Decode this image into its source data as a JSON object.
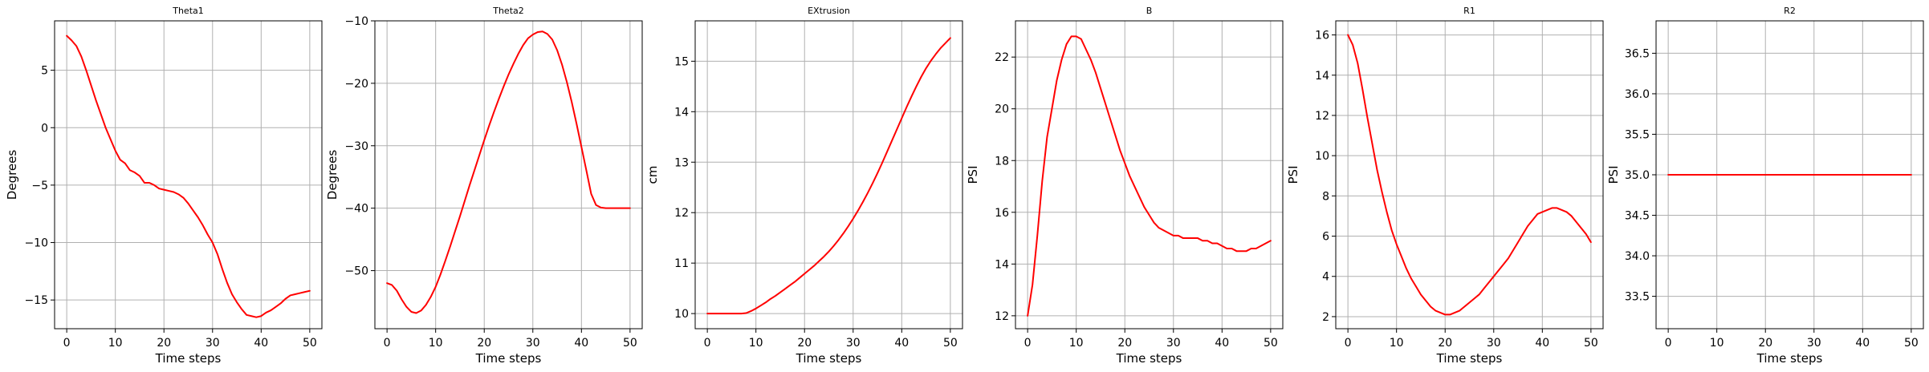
{
  "chart_data": [
    {
      "type": "line",
      "title": "Theta1",
      "xlabel": "Time steps",
      "ylabel": "Degrees",
      "xlim": [
        -2.5,
        52.5
      ],
      "ylim": [
        -17.5,
        9.3
      ],
      "xticks": [
        0,
        10,
        20,
        30,
        40,
        50
      ],
      "xtick_labels": [
        "0",
        "10",
        "20",
        "30",
        "40",
        "50"
      ],
      "yticks": [
        5,
        0,
        -5,
        -10,
        -15
      ],
      "ytick_labels": [
        "5",
        "0",
        "−5",
        "−10",
        "−15"
      ],
      "grid": true,
      "series": [
        {
          "name": "Theta1",
          "color": "#ff0000",
          "x": [
            0,
            1,
            2,
            3,
            4,
            5,
            6,
            7,
            8,
            9,
            10,
            11,
            12,
            13,
            14,
            15,
            16,
            17,
            18,
            19,
            20,
            21,
            22,
            23,
            24,
            25,
            26,
            27,
            28,
            29,
            30,
            31,
            32,
            33,
            34,
            35,
            36,
            37,
            38,
            39,
            40,
            41,
            42,
            43,
            44,
            45,
            46,
            47,
            48,
            49,
            50
          ],
          "y": [
            8.0,
            7.6,
            7.1,
            6.2,
            5.0,
            3.7,
            2.4,
            1.2,
            0.0,
            -1.0,
            -2.0,
            -2.8,
            -3.1,
            -3.7,
            -3.9,
            -4.2,
            -4.8,
            -4.8,
            -5.0,
            -5.3,
            -5.4,
            -5.5,
            -5.6,
            -5.8,
            -6.1,
            -6.6,
            -7.2,
            -7.8,
            -8.5,
            -9.3,
            -10.0,
            -11.0,
            -12.3,
            -13.5,
            -14.5,
            -15.2,
            -15.8,
            -16.3,
            -16.4,
            -16.5,
            -16.4,
            -16.1,
            -15.9,
            -15.6,
            -15.3,
            -14.9,
            -14.6,
            -14.5,
            -14.4,
            -14.3,
            -14.2
          ]
        }
      ]
    },
    {
      "type": "line",
      "title": "Theta2",
      "xlabel": "Time steps",
      "ylabel": "Degrees",
      "xlim": [
        -2.5,
        52.5
      ],
      "ylim": [
        -59.3,
        -10.0
      ],
      "xticks": [
        0,
        10,
        20,
        30,
        40,
        50
      ],
      "xtick_labels": [
        "0",
        "10",
        "20",
        "30",
        "40",
        "50"
      ],
      "yticks": [
        -10,
        -20,
        -30,
        -40,
        -50
      ],
      "ytick_labels": [
        "−10",
        "−20",
        "−30",
        "−40",
        "−50"
      ],
      "grid": true,
      "series": [
        {
          "name": "Theta2",
          "color": "#ff0000",
          "x": [
            0,
            1,
            2,
            3,
            4,
            5,
            6,
            7,
            8,
            9,
            10,
            11,
            12,
            13,
            14,
            15,
            16,
            17,
            18,
            19,
            20,
            21,
            22,
            23,
            24,
            25,
            26,
            27,
            28,
            29,
            30,
            31,
            32,
            33,
            34,
            35,
            36,
            37,
            38,
            39,
            40,
            41,
            42,
            43,
            44,
            45,
            46,
            47,
            48,
            49,
            50
          ],
          "y": [
            -52.0,
            -52.3,
            -53.2,
            -54.6,
            -55.8,
            -56.6,
            -56.8,
            -56.4,
            -55.5,
            -54.2,
            -52.6,
            -50.6,
            -48.4,
            -46.1,
            -43.7,
            -41.3,
            -38.8,
            -36.3,
            -33.9,
            -31.5,
            -29.1,
            -26.8,
            -24.6,
            -22.5,
            -20.5,
            -18.6,
            -16.9,
            -15.3,
            -13.9,
            -12.8,
            -12.2,
            -11.8,
            -11.7,
            -12.1,
            -13.0,
            -14.7,
            -17.0,
            -19.8,
            -23.0,
            -26.5,
            -30.2,
            -33.9,
            -37.7,
            -39.5,
            -39.9,
            -40.0,
            -40.0,
            -40.0,
            -40.0,
            -40.0,
            -40.0
          ]
        }
      ]
    },
    {
      "type": "line",
      "title": "EXtrusion",
      "xlabel": "Time steps",
      "ylabel": "cm",
      "xlim": [
        -2.5,
        52.5
      ],
      "ylim": [
        9.7,
        15.8
      ],
      "xticks": [
        0,
        10,
        20,
        30,
        40,
        50
      ],
      "xtick_labels": [
        "0",
        "10",
        "20",
        "30",
        "40",
        "50"
      ],
      "yticks": [
        15,
        14,
        13,
        12,
        11,
        10
      ],
      "ytick_labels": [
        "15",
        "14",
        "13",
        "12",
        "11",
        "10"
      ],
      "grid": true,
      "series": [
        {
          "name": "EXtrusion",
          "color": "#ff0000",
          "x": [
            0,
            1,
            2,
            3,
            4,
            5,
            6,
            7,
            8,
            9,
            10,
            11,
            12,
            13,
            14,
            15,
            16,
            17,
            18,
            19,
            20,
            21,
            22,
            23,
            24,
            25,
            26,
            27,
            28,
            29,
            30,
            31,
            32,
            33,
            34,
            35,
            36,
            37,
            38,
            39,
            40,
            41,
            42,
            43,
            44,
            45,
            46,
            47,
            48,
            49,
            50
          ],
          "y": [
            10.0,
            10.0,
            10.0,
            10.0,
            10.0,
            10.0,
            10.0,
            10.0,
            10.01,
            10.05,
            10.1,
            10.16,
            10.22,
            10.29,
            10.35,
            10.42,
            10.49,
            10.56,
            10.63,
            10.71,
            10.79,
            10.87,
            10.95,
            11.04,
            11.13,
            11.23,
            11.34,
            11.46,
            11.59,
            11.73,
            11.88,
            12.04,
            12.21,
            12.39,
            12.58,
            12.78,
            12.99,
            13.21,
            13.43,
            13.65,
            13.87,
            14.09,
            14.3,
            14.5,
            14.69,
            14.86,
            15.01,
            15.14,
            15.26,
            15.36,
            15.46
          ]
        }
      ]
    },
    {
      "type": "line",
      "title": "B",
      "xlabel": "Time steps",
      "ylabel": "PSI",
      "xlim": [
        -2.5,
        52.5
      ],
      "ylim": [
        11.5,
        23.4
      ],
      "xticks": [
        0,
        10,
        20,
        30,
        40,
        50
      ],
      "xtick_labels": [
        "0",
        "10",
        "20",
        "30",
        "40",
        "50"
      ],
      "yticks": [
        22,
        20,
        18,
        16,
        14,
        12
      ],
      "ytick_labels": [
        "22",
        "20",
        "18",
        "16",
        "14",
        "12"
      ],
      "grid": true,
      "series": [
        {
          "name": "B",
          "color": "#ff0000",
          "x": [
            0,
            1,
            2,
            3,
            4,
            5,
            6,
            7,
            8,
            9,
            10,
            11,
            12,
            13,
            14,
            15,
            16,
            17,
            18,
            19,
            20,
            21,
            22,
            23,
            24,
            25,
            26,
            27,
            28,
            29,
            30,
            31,
            32,
            33,
            34,
            35,
            36,
            37,
            38,
            39,
            40,
            41,
            42,
            43,
            44,
            45,
            46,
            47,
            48,
            49,
            50
          ],
          "y": [
            12.0,
            13.2,
            15.1,
            17.2,
            18.9,
            20.0,
            21.1,
            21.9,
            22.5,
            22.8,
            22.8,
            22.7,
            22.3,
            21.9,
            21.4,
            20.8,
            20.2,
            19.6,
            19.0,
            18.4,
            17.9,
            17.4,
            17.0,
            16.6,
            16.2,
            15.9,
            15.6,
            15.4,
            15.3,
            15.2,
            15.1,
            15.1,
            15.0,
            15.0,
            15.0,
            15.0,
            14.9,
            14.9,
            14.8,
            14.8,
            14.7,
            14.6,
            14.6,
            14.5,
            14.5,
            14.5,
            14.6,
            14.6,
            14.7,
            14.8,
            14.9
          ]
        }
      ]
    },
    {
      "type": "line",
      "title": "R1",
      "xlabel": "Time steps",
      "ylabel": "PSI",
      "xlim": [
        -2.5,
        52.5
      ],
      "ylim": [
        1.4,
        16.7
      ],
      "xticks": [
        0,
        10,
        20,
        30,
        40,
        50
      ],
      "xtick_labels": [
        "0",
        "10",
        "20",
        "30",
        "40",
        "50"
      ],
      "yticks": [
        16,
        14,
        12,
        10,
        8,
        6,
        4,
        2
      ],
      "ytick_labels": [
        "16",
        "14",
        "12",
        "10",
        "8",
        "6",
        "4",
        "2"
      ],
      "grid": true,
      "series": [
        {
          "name": "R1",
          "color": "#ff0000",
          "x": [
            0,
            1,
            2,
            3,
            4,
            5,
            6,
            7,
            8,
            9,
            10,
            11,
            12,
            13,
            14,
            15,
            16,
            17,
            18,
            19,
            20,
            21,
            22,
            23,
            24,
            25,
            26,
            27,
            28,
            29,
            30,
            31,
            32,
            33,
            34,
            35,
            36,
            37,
            38,
            39,
            40,
            41,
            42,
            43,
            44,
            45,
            46,
            47,
            48,
            49,
            50
          ],
          "y": [
            16.0,
            15.5,
            14.6,
            13.3,
            11.9,
            10.6,
            9.3,
            8.2,
            7.2,
            6.3,
            5.6,
            5.0,
            4.4,
            3.9,
            3.5,
            3.1,
            2.8,
            2.5,
            2.3,
            2.2,
            2.1,
            2.1,
            2.2,
            2.3,
            2.5,
            2.7,
            2.9,
            3.1,
            3.4,
            3.7,
            4.0,
            4.3,
            4.6,
            4.9,
            5.3,
            5.7,
            6.1,
            6.5,
            6.8,
            7.1,
            7.2,
            7.3,
            7.4,
            7.4,
            7.3,
            7.2,
            7.0,
            6.7,
            6.4,
            6.1,
            5.7
          ]
        }
      ]
    },
    {
      "type": "line",
      "title": "R2",
      "xlabel": "Time steps",
      "ylabel": "PSI",
      "xlim": [
        -2.5,
        52.5
      ],
      "ylim": [
        33.1,
        36.9
      ],
      "xticks": [
        0,
        10,
        20,
        30,
        40,
        50
      ],
      "xtick_labels": [
        "0",
        "10",
        "20",
        "30",
        "40",
        "50"
      ],
      "yticks": [
        36.5,
        36.0,
        35.5,
        35.0,
        34.5,
        34.0,
        33.5
      ],
      "ytick_labels": [
        "36.5",
        "36.0",
        "35.5",
        "35.0",
        "34.5",
        "34.0",
        "33.5"
      ],
      "grid": true,
      "series": [
        {
          "name": "R2",
          "color": "#ff0000",
          "x": [
            0,
            50
          ],
          "y": [
            35.0,
            35.0
          ]
        }
      ]
    }
  ]
}
